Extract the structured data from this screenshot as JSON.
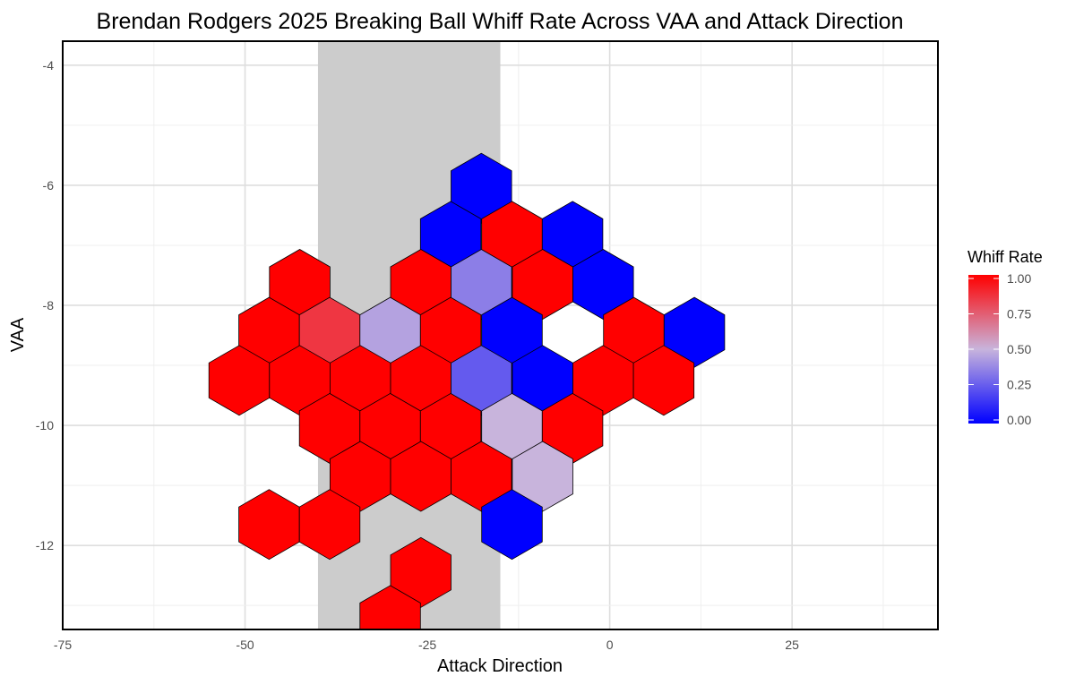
{
  "chart_data": {
    "type": "hexbin",
    "title": "Brendan Rodgers 2025 Breaking Ball Whiff Rate Across VAA and Attack Direction",
    "xlabel": "Attack Direction",
    "ylabel": "VAA",
    "xlim": [
      -75,
      45
    ],
    "ylim": [
      -13.4,
      -3.6
    ],
    "x_ticks": [
      -75,
      -50,
      -25,
      0,
      25
    ],
    "y_ticks": [
      -4,
      -6,
      -8,
      -10,
      -12
    ],
    "grid": true,
    "shaded_band": {
      "x_range": [
        -40,
        -15
      ],
      "color": "#cccccc"
    },
    "legend": {
      "title": "Whiff Rate",
      "position": "right",
      "min": 0,
      "max": 1,
      "ticks": [
        "1.00",
        "0.75",
        "0.50",
        "0.25",
        "0.00"
      ],
      "colors": {
        "low": "#0000ff",
        "mid": "#c8b4dc",
        "high": "#ff0000"
      }
    },
    "hexagons": [
      {
        "x": -17.6,
        "y": -6.05,
        "value": 0.0
      },
      {
        "x": -21.8,
        "y": -6.85,
        "value": 0.0
      },
      {
        "x": -13.4,
        "y": -6.85,
        "value": 1.0
      },
      {
        "x": -5.1,
        "y": -6.85,
        "value": 0.0
      },
      {
        "x": -42.5,
        "y": -7.65,
        "value": 1.0
      },
      {
        "x": -25.9,
        "y": -7.65,
        "value": 1.0
      },
      {
        "x": -17.6,
        "y": -7.65,
        "value": 0.35
      },
      {
        "x": -9.2,
        "y": -7.65,
        "value": 1.0
      },
      {
        "x": -0.9,
        "y": -7.65,
        "value": 0.0
      },
      {
        "x": -46.7,
        "y": -8.45,
        "value": 1.0
      },
      {
        "x": -38.4,
        "y": -8.45,
        "value": 0.85
      },
      {
        "x": -30.1,
        "y": -8.45,
        "value": 0.45
      },
      {
        "x": -21.8,
        "y": -8.45,
        "value": 1.0
      },
      {
        "x": -13.4,
        "y": -8.45,
        "value": 0.0
      },
      {
        "x": 3.3,
        "y": -8.45,
        "value": 1.0
      },
      {
        "x": 11.6,
        "y": -8.45,
        "value": 0.0
      },
      {
        "x": -50.8,
        "y": -9.25,
        "value": 1.0
      },
      {
        "x": -42.5,
        "y": -9.25,
        "value": 1.0
      },
      {
        "x": -34.2,
        "y": -9.25,
        "value": 1.0
      },
      {
        "x": -25.9,
        "y": -9.25,
        "value": 1.0
      },
      {
        "x": -17.6,
        "y": -9.25,
        "value": 0.25
      },
      {
        "x": -9.2,
        "y": -9.25,
        "value": 0.0
      },
      {
        "x": -0.9,
        "y": -9.25,
        "value": 1.0
      },
      {
        "x": 7.4,
        "y": -9.25,
        "value": 1.0
      },
      {
        "x": -38.4,
        "y": -10.05,
        "value": 1.0
      },
      {
        "x": -30.1,
        "y": -10.05,
        "value": 1.0
      },
      {
        "x": -21.8,
        "y": -10.05,
        "value": 1.0
      },
      {
        "x": -13.4,
        "y": -10.05,
        "value": 0.5
      },
      {
        "x": -5.1,
        "y": -10.05,
        "value": 1.0
      },
      {
        "x": -34.2,
        "y": -10.85,
        "value": 1.0
      },
      {
        "x": -25.9,
        "y": -10.85,
        "value": 1.0
      },
      {
        "x": -17.6,
        "y": -10.85,
        "value": 1.0
      },
      {
        "x": -9.2,
        "y": -10.85,
        "value": 0.5
      },
      {
        "x": -46.7,
        "y": -11.65,
        "value": 1.0
      },
      {
        "x": -38.4,
        "y": -11.65,
        "value": 1.0
      },
      {
        "x": -13.4,
        "y": -11.65,
        "value": 0.0
      },
      {
        "x": -25.9,
        "y": -12.45,
        "value": 1.0
      },
      {
        "x": -30.1,
        "y": -13.25,
        "value": 1.0
      }
    ]
  }
}
